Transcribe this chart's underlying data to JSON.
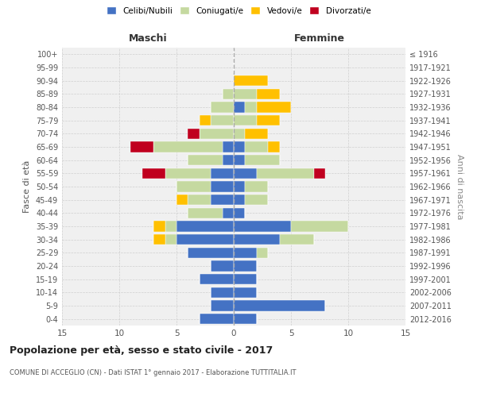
{
  "age_groups": [
    "100+",
    "95-99",
    "90-94",
    "85-89",
    "80-84",
    "75-79",
    "70-74",
    "65-69",
    "60-64",
    "55-59",
    "50-54",
    "45-49",
    "40-44",
    "35-39",
    "30-34",
    "25-29",
    "20-24",
    "15-19",
    "10-14",
    "5-9",
    "0-4"
  ],
  "birth_years": [
    "≤ 1916",
    "1917-1921",
    "1922-1926",
    "1927-1931",
    "1932-1936",
    "1937-1941",
    "1942-1946",
    "1947-1951",
    "1952-1956",
    "1957-1961",
    "1962-1966",
    "1967-1971",
    "1972-1976",
    "1977-1981",
    "1982-1986",
    "1987-1991",
    "1992-1996",
    "1997-2001",
    "2002-2006",
    "2007-2011",
    "2012-2016"
  ],
  "male": {
    "celibe": [
      0,
      0,
      0,
      0,
      0,
      0,
      0,
      1,
      1,
      2,
      2,
      2,
      1,
      5,
      5,
      4,
      2,
      3,
      2,
      2,
      3
    ],
    "coniugato": [
      0,
      0,
      0,
      1,
      2,
      2,
      3,
      6,
      3,
      4,
      3,
      2,
      3,
      1,
      1,
      0,
      0,
      0,
      0,
      0,
      0
    ],
    "vedovo": [
      0,
      0,
      0,
      0,
      0,
      1,
      0,
      0,
      0,
      0,
      0,
      1,
      0,
      1,
      1,
      0,
      0,
      0,
      0,
      0,
      0
    ],
    "divorziato": [
      0,
      0,
      0,
      0,
      0,
      0,
      1,
      2,
      0,
      2,
      0,
      0,
      0,
      0,
      0,
      0,
      0,
      0,
      0,
      0,
      0
    ]
  },
  "female": {
    "nubile": [
      0,
      0,
      0,
      0,
      1,
      0,
      0,
      1,
      1,
      2,
      1,
      1,
      1,
      5,
      4,
      2,
      2,
      2,
      2,
      8,
      2
    ],
    "coniugata": [
      0,
      0,
      0,
      2,
      1,
      2,
      1,
      2,
      3,
      5,
      2,
      2,
      0,
      5,
      3,
      1,
      0,
      0,
      0,
      0,
      0
    ],
    "vedova": [
      0,
      0,
      3,
      2,
      3,
      2,
      2,
      1,
      0,
      0,
      0,
      0,
      0,
      0,
      0,
      0,
      0,
      0,
      0,
      0,
      0
    ],
    "divorziata": [
      0,
      0,
      0,
      0,
      0,
      0,
      0,
      0,
      0,
      1,
      0,
      0,
      0,
      0,
      0,
      0,
      0,
      0,
      0,
      0,
      0
    ]
  },
  "colors": {
    "celibe": "#4472c4",
    "coniugato": "#c5d9a0",
    "vedovo": "#ffc000",
    "divorziato": "#c0001f"
  },
  "xlim": 15,
  "title": "Popolazione per età, sesso e stato civile - 2017",
  "subtitle": "COMUNE DI ACCEGLIO (CN) - Dati ISTAT 1° gennaio 2017 - Elaborazione TUTTITALIA.IT",
  "xlabel_left": "Maschi",
  "xlabel_right": "Femmine",
  "ylabel_left": "Fasce di età",
  "ylabel_right": "Anni di nascita",
  "legend_labels": [
    "Celibi/Nubili",
    "Coniugati/e",
    "Vedovi/e",
    "Divorzati/e"
  ],
  "bg_color": "#f0f0f0",
  "grid_color": "#cccccc",
  "text_color": "#555555",
  "label_color": "#333333",
  "right_label_color": "#888888"
}
